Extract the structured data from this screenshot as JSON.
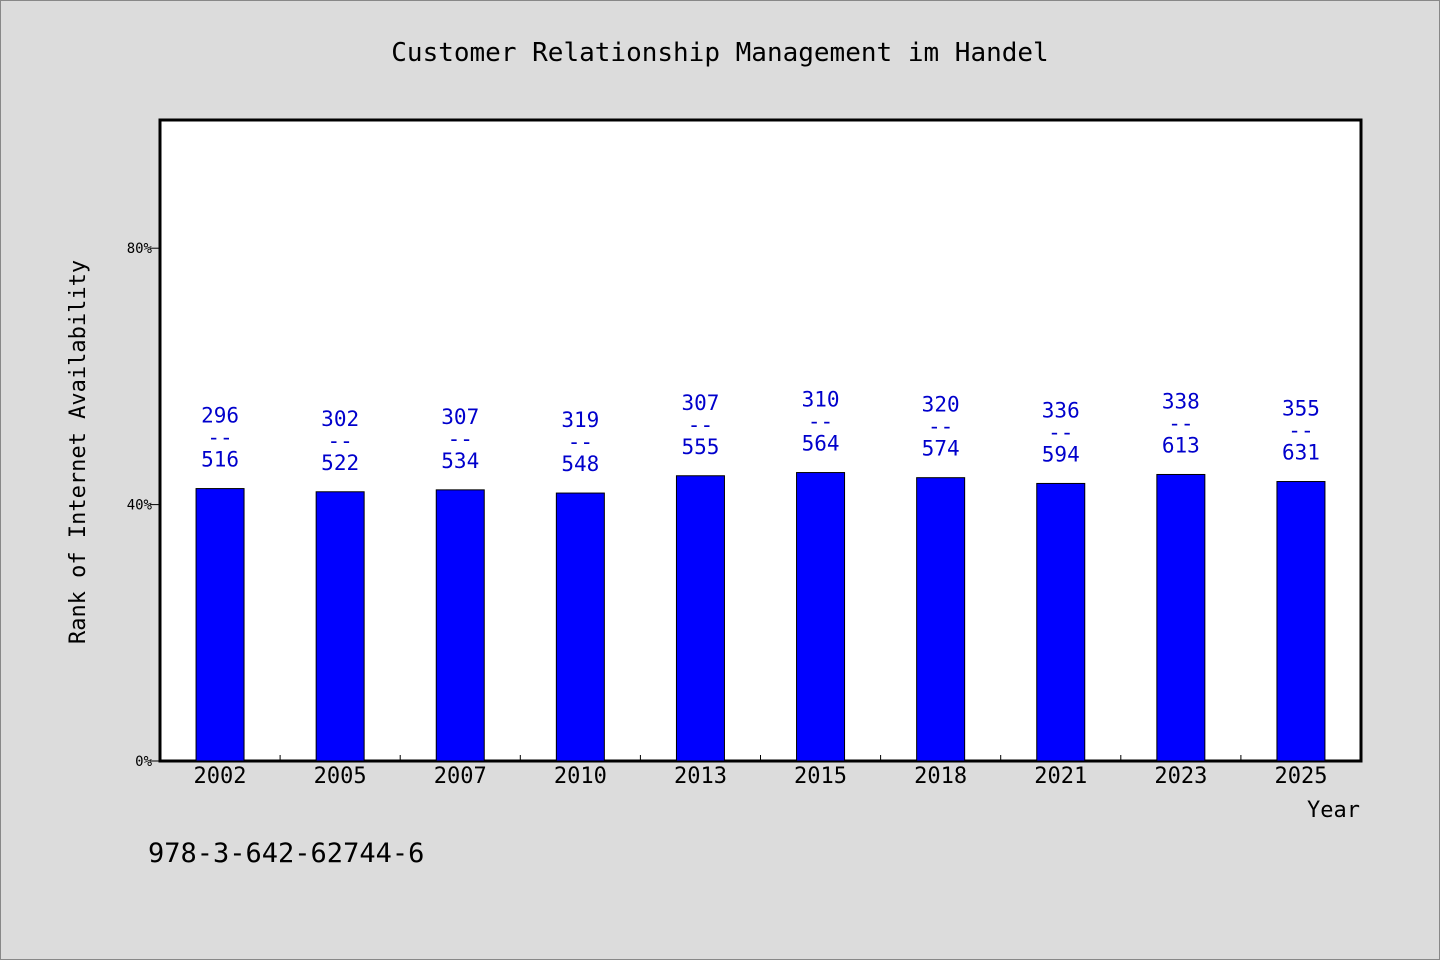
{
  "chart_data": {
    "type": "bar",
    "title": "Customer Relationship Management im Handel",
    "xlabel": "Year",
    "ylabel": "Rank of Internet Availability",
    "ylim": [
      0,
      100
    ],
    "y_ticks": [
      {
        "value": 0,
        "label": "0%"
      },
      {
        "value": 40,
        "label": "40%"
      },
      {
        "value": 80,
        "label": "80%"
      }
    ],
    "categories": [
      "2002",
      "2005",
      "2007",
      "2010",
      "2013",
      "2015",
      "2018",
      "2021",
      "2023",
      "2025"
    ],
    "values": [
      42.5,
      42.0,
      42.3,
      41.8,
      44.5,
      45.0,
      44.2,
      43.3,
      44.7,
      43.6
    ],
    "bar_labels": [
      {
        "top": "296",
        "sep": "--",
        "bottom": "516"
      },
      {
        "top": "302",
        "sep": "--",
        "bottom": "522"
      },
      {
        "top": "307",
        "sep": "--",
        "bottom": "534"
      },
      {
        "top": "319",
        "sep": "--",
        "bottom": "548"
      },
      {
        "top": "307",
        "sep": "--",
        "bottom": "555"
      },
      {
        "top": "310",
        "sep": "--",
        "bottom": "564"
      },
      {
        "top": "320",
        "sep": "--",
        "bottom": "574"
      },
      {
        "top": "336",
        "sep": "--",
        "bottom": "594"
      },
      {
        "top": "338",
        "sep": "--",
        "bottom": "613"
      },
      {
        "top": "355",
        "sep": "--",
        "bottom": "631"
      }
    ],
    "grid": false,
    "bar_color": "#0000ff",
    "label_color": "#0000cc"
  },
  "footer": {
    "isbn": "978-3-642-62744-6"
  },
  "colors": {
    "background": "#dcdcdc",
    "plot_background": "#ffffff",
    "axis": "#000000"
  }
}
